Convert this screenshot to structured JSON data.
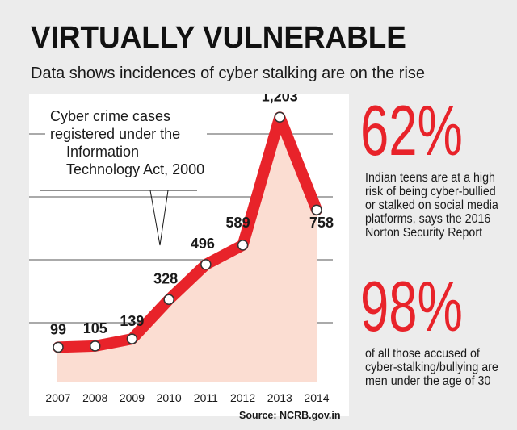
{
  "header": {
    "title": "VIRTUALLY VULNERABLE",
    "subtitle": "Data shows incidences of cyber stalking are on the rise"
  },
  "chart_data": {
    "type": "area",
    "annotation": [
      "Cyber crime cases",
      "registered under the",
      "Information",
      "Technology Act, 2000"
    ],
    "categories": [
      "2007",
      "2008",
      "2009",
      "2010",
      "2011",
      "2012",
      "2013",
      "2014"
    ],
    "values": [
      99,
      105,
      139,
      328,
      496,
      589,
      1203,
      758
    ],
    "value_labels": [
      "99",
      "105",
      "139",
      "328",
      "496",
      "589",
      "1,203",
      "758"
    ],
    "ylim": [
      0,
      1400
    ],
    "grid": true,
    "colors": {
      "line": "#e8232a",
      "fill": "#fbddd2",
      "marker": "#ffffff",
      "grid": "#555555"
    }
  },
  "stats": [
    {
      "value": "62%",
      "text": "Indian teens are at a high risk of being cyber-bullied or stalked on social media platforms, says the 2016 Norton Security Report"
    },
    {
      "value": "98%",
      "text": "of all those accused of cyber-stalking/bullying are men under the age of 30"
    }
  ],
  "source": "Source: NCRB.gov.in"
}
